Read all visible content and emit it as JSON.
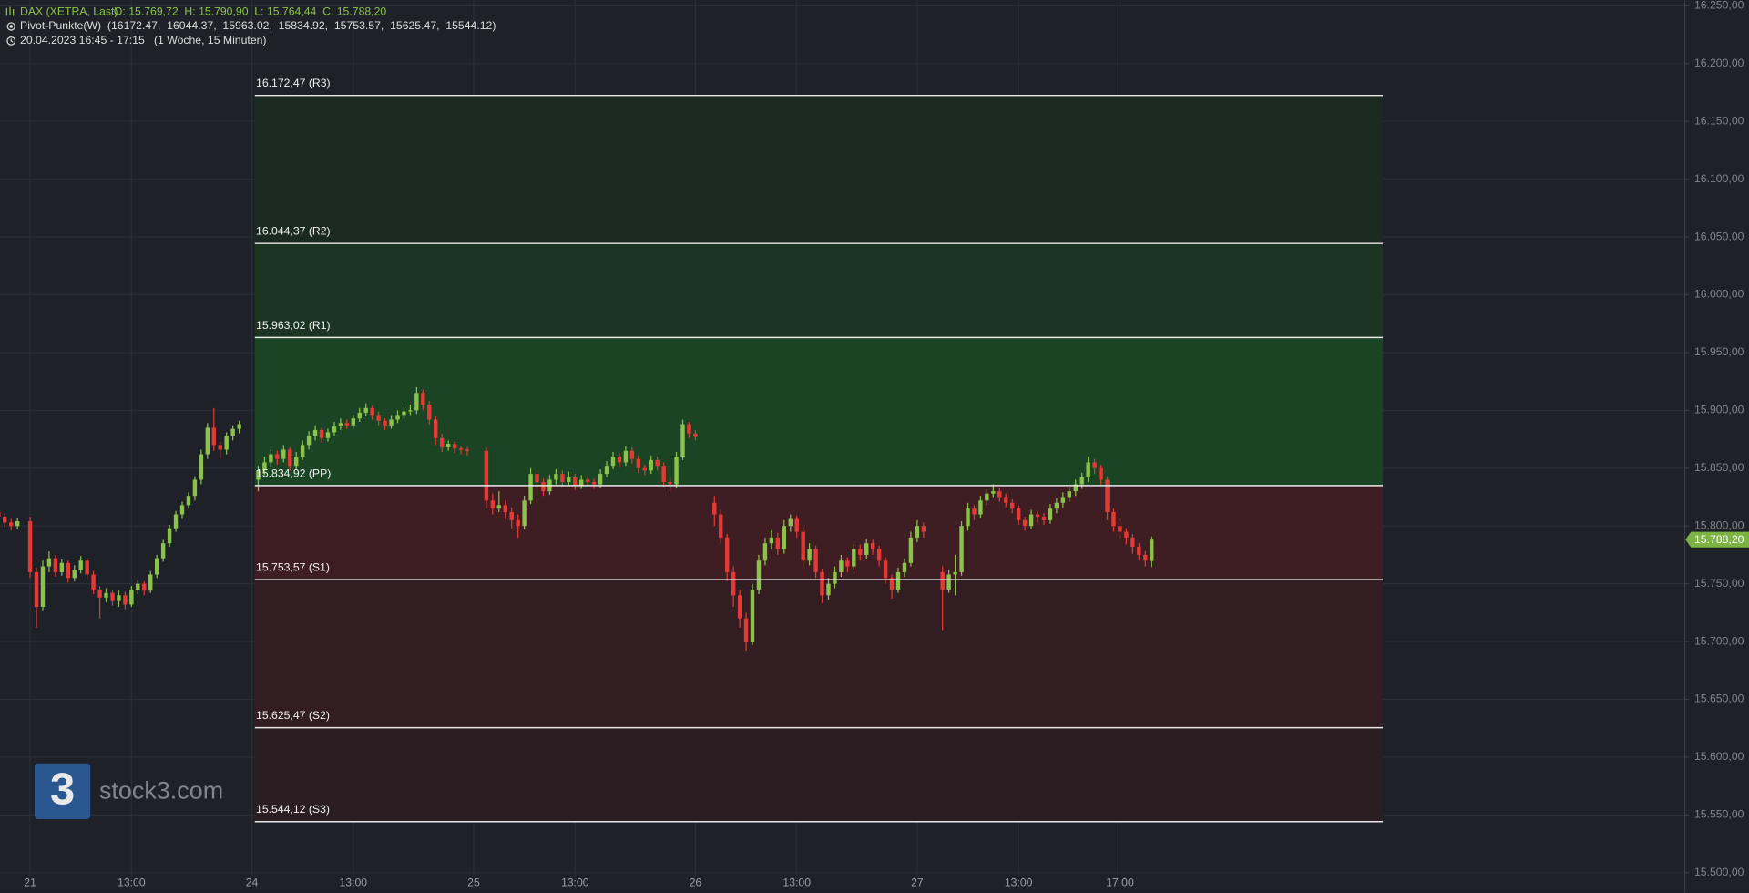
{
  "chart_data": {
    "type": "candlestick",
    "header": {
      "title": "DAX (XETRA, Last)",
      "ohlc": "O: 15.769,72  H: 15.790,90  L: 15.764,44  C: 15.788,20",
      "indicator": "Pivot-Punkte(W)  (16172.47,  16044.37,  15963.02,  15834.92,  15753.57,  15625.47,  15544.12)",
      "period": "20.04.2023 16:45 - 17:15   (1 Woche, 15 Minuten)"
    },
    "colors": {
      "up": "#8bc34a",
      "down": "#e53935",
      "pivot_line": "#e8e8e8",
      "header": "#8bc34a",
      "last_price": "#7cb342"
    },
    "zone_colors": [
      "#1b2a21",
      "#1c3422",
      "#1b4424",
      "#3f1e23",
      "#321d22",
      "#2a1e23"
    ],
    "grid": true,
    "ylim": [
      15500,
      16250
    ],
    "yticks": [
      {
        "value": 16250,
        "label": "16.250,00"
      },
      {
        "value": 16200,
        "label": "16.200,00"
      },
      {
        "value": 16150,
        "label": "16.150,00"
      },
      {
        "value": 16100,
        "label": "16.100,00"
      },
      {
        "value": 16050,
        "label": "16.050,00"
      },
      {
        "value": 16000,
        "label": "16.000,00"
      },
      {
        "value": 15950,
        "label": "15.950,00"
      },
      {
        "value": 15900,
        "label": "15.900,00"
      },
      {
        "value": 15850,
        "label": "15.850,00"
      },
      {
        "value": 15800,
        "label": "15.800,00"
      },
      {
        "value": 15750,
        "label": "15.750,00"
      },
      {
        "value": 15700,
        "label": "15.700,00"
      },
      {
        "value": 15650,
        "label": "15.650,00"
      },
      {
        "value": 15600,
        "label": "15.600,00"
      },
      {
        "value": 15550,
        "label": "15.550,00"
      },
      {
        "value": 15500,
        "label": "15.500,00"
      }
    ],
    "pivots": [
      {
        "value": 16172.47,
        "label": "16.172,47 (R3)"
      },
      {
        "value": 16044.37,
        "label": "16.044,37 (R2)"
      },
      {
        "value": 15963.02,
        "label": "15.963,02 (R1)"
      },
      {
        "value": 15834.92,
        "label": "15.834,92 (PP)"
      },
      {
        "value": 15753.57,
        "label": "15.753,57 (S1)"
      },
      {
        "value": 15625.47,
        "label": "15.625,47 (S2)"
      },
      {
        "value": 15544.12,
        "label": "15.544,12 (S3)"
      }
    ],
    "last_price": {
      "value": 15788.2,
      "label": "15.788,20"
    },
    "categories": [
      null,
      null,
      null,
      null,
      null,
      "21",
      null,
      null,
      null,
      null,
      null,
      null,
      null,
      null,
      null,
      null,
      null,
      null,
      null,
      null,
      null,
      "13:00",
      null,
      null,
      null,
      null,
      null,
      null,
      null,
      null,
      null,
      null,
      null,
      null,
      null,
      null,
      null,
      null,
      null,
      null,
      "24",
      null,
      null,
      null,
      null,
      null,
      null,
      null,
      null,
      null,
      null,
      null,
      null,
      null,
      null,
      null,
      "13:00",
      null,
      null,
      null,
      null,
      null,
      null,
      null,
      null,
      null,
      null,
      null,
      null,
      null,
      null,
      null,
      null,
      null,
      null,
      "25",
      null,
      null,
      null,
      null,
      null,
      null,
      null,
      null,
      null,
      null,
      null,
      null,
      null,
      null,
      null,
      "13:00",
      null,
      null,
      null,
      null,
      null,
      null,
      null,
      null,
      null,
      null,
      null,
      null,
      null,
      null,
      null,
      null,
      null,
      null,
      "26",
      null,
      null,
      null,
      null,
      null,
      null,
      null,
      null,
      null,
      null,
      null,
      null,
      null,
      null,
      null,
      "13:00",
      null,
      null,
      null,
      null,
      null,
      null,
      null,
      null,
      null,
      null,
      null,
      null,
      null,
      null,
      null,
      null,
      null,
      null,
      "27",
      null,
      null,
      null,
      null,
      null,
      null,
      null,
      null,
      null,
      null,
      null,
      null,
      null,
      null,
      null,
      "13:00",
      null,
      null,
      null,
      null,
      null,
      null,
      null,
      null,
      null,
      null,
      null,
      null,
      null,
      null,
      null,
      "17:00",
      null
    ],
    "ohlc": [
      [
        15812,
        15816,
        15805,
        15808
      ],
      [
        15808,
        15811,
        15799,
        15803
      ],
      [
        15803,
        15806,
        15796,
        15800
      ],
      [
        15800,
        15807,
        15797,
        15804
      ],
      null,
      [
        15804,
        15808,
        15755,
        15760
      ],
      [
        15760,
        15764,
        15712,
        15730
      ],
      [
        15730,
        15770,
        15727,
        15765
      ],
      [
        15765,
        15778,
        15760,
        15772
      ],
      [
        15772,
        15775,
        15756,
        15760
      ],
      [
        15760,
        15771,
        15757,
        15768
      ],
      [
        15768,
        15770,
        15751,
        15755
      ],
      [
        15755,
        15766,
        15752,
        15762
      ],
      [
        15762,
        15774,
        15759,
        15770
      ],
      [
        15770,
        15772,
        15754,
        15758
      ],
      [
        15758,
        15761,
        15741,
        15745
      ],
      [
        15745,
        15748,
        15720,
        15738
      ],
      [
        15738,
        15746,
        15734,
        15742
      ],
      [
        15742,
        15744,
        15731,
        15735
      ],
      [
        15735,
        15744,
        15730,
        15740
      ],
      [
        15740,
        15743,
        15728,
        15732
      ],
      [
        15732,
        15748,
        15730,
        15745
      ],
      [
        15745,
        15753,
        15741,
        15750
      ],
      [
        15750,
        15752,
        15740,
        15744
      ],
      [
        15744,
        15761,
        15742,
        15758
      ],
      [
        15758,
        15775,
        15755,
        15772
      ],
      [
        15772,
        15788,
        15769,
        15785
      ],
      [
        15785,
        15801,
        15782,
        15798
      ],
      [
        15798,
        15813,
        15795,
        15810
      ],
      [
        15810,
        15821,
        15806,
        15818
      ],
      [
        15818,
        15829,
        15815,
        15826
      ],
      [
        15826,
        15843,
        15822,
        15840
      ],
      [
        15840,
        15866,
        15836,
        15862
      ],
      [
        15862,
        15889,
        15858,
        15885
      ],
      [
        15885,
        15902,
        15865,
        15870
      ],
      [
        15870,
        15873,
        15858,
        15866
      ],
      [
        15866,
        15881,
        15862,
        15878
      ],
      [
        15878,
        15887,
        15874,
        15884
      ],
      [
        15884,
        15891,
        15880,
        15888
      ],
      null,
      null,
      [
        15840,
        15852,
        15830,
        15848
      ],
      [
        15848,
        15860,
        15844,
        15855
      ],
      [
        15855,
        15866,
        15851,
        15862
      ],
      [
        15862,
        15865,
        15853,
        15858
      ],
      [
        15858,
        15870,
        15855,
        15866
      ],
      [
        15866,
        15868,
        15848,
        15852
      ],
      [
        15852,
        15864,
        15849,
        15860
      ],
      [
        15860,
        15874,
        15857,
        15870
      ],
      [
        15870,
        15882,
        15866,
        15878
      ],
      [
        15878,
        15887,
        15874,
        15883
      ],
      [
        15883,
        15885,
        15872,
        15876
      ],
      [
        15876,
        15884,
        15873,
        15881
      ],
      [
        15881,
        15890,
        15878,
        15886
      ],
      [
        15886,
        15893,
        15883,
        15889
      ],
      [
        15889,
        15892,
        15884,
        15887
      ],
      [
        15887,
        15896,
        15884,
        15893
      ],
      [
        15893,
        15902,
        15890,
        15898
      ],
      [
        15898,
        15906,
        15895,
        15902
      ],
      [
        15902,
        15904,
        15892,
        15896
      ],
      [
        15896,
        15899,
        15887,
        15891
      ],
      [
        15891,
        15893,
        15883,
        15887
      ],
      [
        15887,
        15896,
        15884,
        15892
      ],
      [
        15892,
        15900,
        15889,
        15896
      ],
      [
        15896,
        15903,
        15893,
        15899
      ],
      [
        15899,
        15905,
        15896,
        15900
      ],
      [
        15900,
        15920,
        15897,
        15915
      ],
      [
        15915,
        15918,
        15900,
        15905
      ],
      [
        15905,
        15908,
        15888,
        15892
      ],
      [
        15892,
        15895,
        15870,
        15876
      ],
      [
        15876,
        15880,
        15864,
        15868
      ],
      [
        15868,
        15874,
        15865,
        15871
      ],
      [
        15871,
        15873,
        15863,
        15867
      ],
      [
        15867,
        15869,
        15862,
        15866
      ],
      [
        15866,
        15868,
        15861,
        15865
      ],
      null,
      null,
      [
        15865,
        15868,
        15815,
        15822
      ],
      [
        15822,
        15828,
        15810,
        15815
      ],
      [
        15815,
        15830,
        15812,
        15818
      ],
      [
        15818,
        15822,
        15806,
        15812
      ],
      [
        15812,
        15816,
        15798,
        15805
      ],
      [
        15805,
        15810,
        15790,
        15800
      ],
      [
        15800,
        15826,
        15797,
        15822
      ],
      [
        15822,
        15850,
        15819,
        15845
      ],
      [
        15845,
        15848,
        15834,
        15838
      ],
      [
        15838,
        15841,
        15826,
        15830
      ],
      [
        15830,
        15844,
        15827,
        15840
      ],
      [
        15840,
        15849,
        15836,
        15845
      ],
      [
        15845,
        15848,
        15834,
        15838
      ],
      [
        15838,
        15847,
        15835,
        15842
      ],
      [
        15842,
        15845,
        15831,
        15835
      ],
      [
        15835,
        15844,
        15832,
        15840
      ],
      [
        15840,
        15843,
        15834,
        15838
      ],
      [
        15838,
        15841,
        15832,
        15836
      ],
      [
        15836,
        15849,
        15833,
        15845
      ],
      [
        15845,
        15856,
        15842,
        15852
      ],
      [
        15852,
        15864,
        15849,
        15860
      ],
      [
        15860,
        15863,
        15851,
        15855
      ],
      [
        15855,
        15869,
        15852,
        15865
      ],
      [
        15865,
        15868,
        15854,
        15858
      ],
      [
        15858,
        15861,
        15846,
        15850
      ],
      [
        15850,
        15853,
        15844,
        15848
      ],
      [
        15848,
        15861,
        15845,
        15857
      ],
      [
        15857,
        15860,
        15848,
        15852
      ],
      [
        15852,
        15855,
        15834,
        15838
      ],
      [
        15838,
        15842,
        15830,
        15836
      ],
      [
        15836,
        15864,
        15833,
        15860
      ],
      [
        15860,
        15892,
        15857,
        15888
      ],
      [
        15888,
        15890,
        15876,
        15880
      ],
      [
        15880,
        15883,
        15874,
        15877
      ],
      null,
      null,
      [
        15820,
        15826,
        15800,
        15810
      ],
      [
        15810,
        15814,
        15785,
        15790
      ],
      [
        15790,
        15793,
        15752,
        15760
      ],
      [
        15760,
        15765,
        15730,
        15740
      ],
      [
        15740,
        15745,
        15712,
        15720
      ],
      [
        15720,
        15725,
        15692,
        15700
      ],
      [
        15700,
        15750,
        15697,
        15745
      ],
      [
        15745,
        15775,
        15741,
        15770
      ],
      [
        15770,
        15790,
        15766,
        15785
      ],
      [
        15785,
        15796,
        15780,
        15790
      ],
      [
        15790,
        15794,
        15775,
        15780
      ],
      [
        15780,
        15805,
        15776,
        15800
      ],
      [
        15800,
        15810,
        15795,
        15806
      ],
      [
        15806,
        15809,
        15790,
        15795
      ],
      [
        15795,
        15799,
        15765,
        15770
      ],
      [
        15770,
        15785,
        15766,
        15780
      ],
      [
        15780,
        15783,
        15755,
        15760
      ],
      [
        15760,
        15763,
        15733,
        15740
      ],
      [
        15740,
        15755,
        15736,
        15750
      ],
      [
        15750,
        15765,
        15746,
        15760
      ],
      [
        15760,
        15775,
        15756,
        15770
      ],
      [
        15770,
        15773,
        15760,
        15765
      ],
      [
        15765,
        15784,
        15762,
        15780
      ],
      [
        15780,
        15784,
        15770,
        15775
      ],
      [
        15775,
        15789,
        15771,
        15785
      ],
      [
        15785,
        15788,
        15775,
        15780
      ],
      [
        15780,
        15783,
        15765,
        15770
      ],
      [
        15770,
        15773,
        15750,
        15755
      ],
      [
        15755,
        15758,
        15737,
        15745
      ],
      [
        15745,
        15764,
        15742,
        15760
      ],
      [
        15760,
        15772,
        15756,
        15768
      ],
      [
        15768,
        15795,
        15765,
        15790
      ],
      [
        15790,
        15805,
        15786,
        15800
      ],
      [
        15800,
        15803,
        15790,
        15795
      ],
      null,
      null,
      [
        15760,
        15765,
        15710,
        15745
      ],
      [
        15745,
        15762,
        15742,
        15758
      ],
      [
        15758,
        15775,
        15740,
        15760
      ],
      [
        15760,
        15804,
        15757,
        15800
      ],
      [
        15800,
        15820,
        15796,
        15815
      ],
      [
        15815,
        15818,
        15805,
        15810
      ],
      [
        15810,
        15826,
        15807,
        15822
      ],
      [
        15822,
        15832,
        15818,
        15828
      ],
      [
        15828,
        15836,
        15825,
        15830
      ],
      [
        15830,
        15833,
        15821,
        15825
      ],
      [
        15825,
        15828,
        15816,
        15820
      ],
      [
        15820,
        15823,
        15811,
        15815
      ],
      [
        15815,
        15818,
        15801,
        15805
      ],
      [
        15805,
        15808,
        15796,
        15800
      ],
      [
        15800,
        15814,
        15797,
        15810
      ],
      [
        15810,
        15813,
        15803,
        15808
      ],
      [
        15808,
        15811,
        15801,
        15805
      ],
      [
        15805,
        15819,
        15802,
        15815
      ],
      [
        15815,
        15824,
        15811,
        15820
      ],
      [
        15820,
        15829,
        15816,
        15825
      ],
      [
        15825,
        15834,
        15821,
        15830
      ],
      [
        15830,
        15840,
        15826,
        15836
      ],
      [
        15836,
        15846,
        15832,
        15842
      ],
      [
        15842,
        15860,
        15838,
        15855
      ],
      [
        15855,
        15858,
        15845,
        15850
      ],
      [
        15850,
        15853,
        15836,
        15840
      ],
      [
        15840,
        15843,
        15805,
        15812
      ],
      [
        15812,
        15815,
        15795,
        15800
      ],
      [
        15800,
        15806,
        15790,
        15795
      ],
      [
        15795,
        15798,
        15784,
        15790
      ],
      [
        15790,
        15793,
        15776,
        15782
      ],
      [
        15782,
        15785,
        15770,
        15775
      ],
      [
        15775,
        15778,
        15765,
        15770
      ],
      [
        15769.72,
        15790.9,
        15764.44,
        15788.2
      ]
    ]
  },
  "watermark": {
    "logo": "3",
    "text": "stock3.com"
  }
}
